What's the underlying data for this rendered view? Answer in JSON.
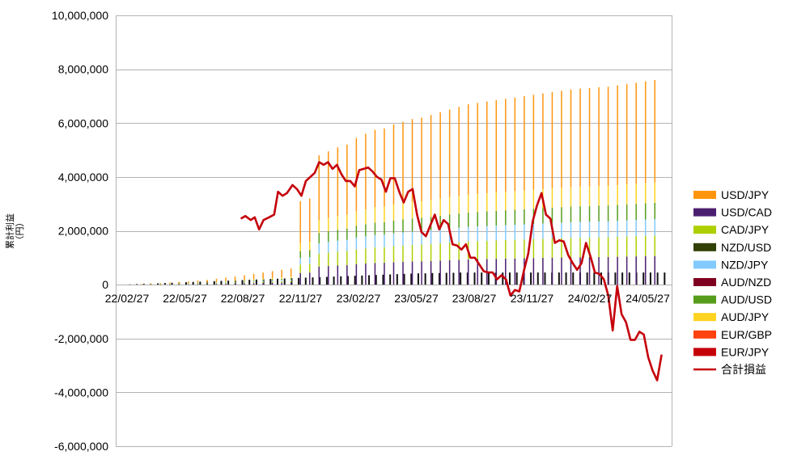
{
  "chart_data": {
    "type": "bar",
    "subtype": "stacked-bar-with-line",
    "title": "",
    "ylabel": "累計利益\n（円）",
    "ylim": [
      -6000000,
      10000000
    ],
    "yticks": [
      -6000000,
      -4000000,
      -2000000,
      0,
      2000000,
      4000000,
      6000000,
      8000000,
      10000000
    ],
    "ytick_labels": [
      "-6,000,000",
      "-4,000,000",
      "-2,000,000",
      "0",
      "2,000,000",
      "4,000,000",
      "6,000,000",
      "8,000,000",
      "10,000,000"
    ],
    "xtick_labels": [
      "22/02/27",
      "22/05/27",
      "22/08/27",
      "22/11/27",
      "23/02/27",
      "23/05/27",
      "23/08/27",
      "23/11/27",
      "24/02/27",
      "24/05/27"
    ],
    "grid": true,
    "legend_position": "right",
    "series": [
      {
        "name": "USD/JPY",
        "color": "#ff950e",
        "kind": "bar"
      },
      {
        "name": "USD/CAD",
        "color": "#4b1f6f",
        "kind": "bar"
      },
      {
        "name": "CAD/JPY",
        "color": "#aecf00",
        "kind": "bar"
      },
      {
        "name": "NZD/USD",
        "color": "#314004",
        "kind": "bar"
      },
      {
        "name": "NZD/JPY",
        "color": "#83caff",
        "kind": "bar"
      },
      {
        "name": "AUD/NZD",
        "color": "#7e0021",
        "kind": "bar"
      },
      {
        "name": "AUD/USD",
        "color": "#579d1c",
        "kind": "bar"
      },
      {
        "name": "AUD/JPY",
        "color": "#ffd320",
        "kind": "bar"
      },
      {
        "name": "EUR/GBP",
        "color": "#ff420e",
        "kind": "bar"
      },
      {
        "name": "EUR/JPY",
        "color": "#c5000b",
        "kind": "bar"
      },
      {
        "name": "合計損益",
        "color": "#c5000b",
        "kind": "line"
      }
    ],
    "bar_totals": [
      0,
      20000,
      40000,
      60000,
      80000,
      100000,
      120000,
      150000,
      180000,
      220000,
      260000,
      300000,
      350000,
      400000,
      450000,
      500000,
      550000,
      600000,
      3100000,
      3200000,
      4800000,
      4950000,
      5100000,
      5200000,
      5450000,
      5600000,
      5750000,
      5800000,
      5950000,
      6050000,
      6150000,
      6200000,
      6300000,
      6400000,
      6500000,
      6600000,
      6700000,
      6750000,
      6800000,
      6850000,
      6900000,
      6950000,
      7000000,
      7050000,
      7100000,
      7150000,
      7200000,
      7250000,
      7280000,
      7300000,
      7330000,
      7350000,
      7400000,
      7450000,
      7500000,
      7550000,
      7600000
    ],
    "black_bar_heights": [
      0,
      10000,
      20000,
      30000,
      40000,
      50000,
      60000,
      70000,
      80000,
      90000,
      100000,
      110000,
      120000,
      130000,
      140000,
      150000,
      160000,
      170000,
      180000,
      190000,
      200000,
      210000,
      220000,
      230000,
      240000,
      250000,
      260000,
      270000,
      280000,
      290000,
      300000,
      310000,
      320000,
      330000,
      340000,
      350000,
      360000,
      370000,
      380000,
      390000,
      400000,
      410000,
      420000,
      420000,
      430000,
      430000,
      440000,
      440000,
      450000,
      450000,
      450000,
      450000,
      450000,
      450000,
      450000,
      450000,
      450000,
      450000,
      450000,
      450000,
      450000,
      450000,
      450000,
      450000,
      450000,
      450000,
      450000,
      450000,
      450000,
      450000,
      450000,
      450000,
      450000,
      450000,
      450000,
      450000,
      450000,
      450000
    ],
    "total_line": [
      [
        0.225,
        2450000
      ],
      [
        0.233,
        2550000
      ],
      [
        0.243,
        2400000
      ],
      [
        0.25,
        2500000
      ],
      [
        0.258,
        2050000
      ],
      [
        0.266,
        2400000
      ],
      [
        0.276,
        2500000
      ],
      [
        0.285,
        2600000
      ],
      [
        0.292,
        3450000
      ],
      [
        0.3,
        3300000
      ],
      [
        0.308,
        3400000
      ],
      [
        0.318,
        3700000
      ],
      [
        0.326,
        3550000
      ],
      [
        0.334,
        3300000
      ],
      [
        0.342,
        3850000
      ],
      [
        0.35,
        4000000
      ],
      [
        0.358,
        4150000
      ],
      [
        0.366,
        4550000
      ],
      [
        0.374,
        4450000
      ],
      [
        0.382,
        4550000
      ],
      [
        0.39,
        4300000
      ],
      [
        0.398,
        4450000
      ],
      [
        0.406,
        4100000
      ],
      [
        0.414,
        3850000
      ],
      [
        0.422,
        3850000
      ],
      [
        0.43,
        3650000
      ],
      [
        0.438,
        4250000
      ],
      [
        0.446,
        4300000
      ],
      [
        0.454,
        4350000
      ],
      [
        0.462,
        4200000
      ],
      [
        0.47,
        4000000
      ],
      [
        0.478,
        3900000
      ],
      [
        0.486,
        3450000
      ],
      [
        0.494,
        3950000
      ],
      [
        0.502,
        3950000
      ],
      [
        0.51,
        3450000
      ],
      [
        0.518,
        3050000
      ],
      [
        0.526,
        3450000
      ],
      [
        0.534,
        3550000
      ],
      [
        0.542,
        2600000
      ],
      [
        0.55,
        1950000
      ],
      [
        0.558,
        1800000
      ],
      [
        0.566,
        2200000
      ],
      [
        0.574,
        2600000
      ],
      [
        0.582,
        2050000
      ],
      [
        0.59,
        2400000
      ],
      [
        0.598,
        2250000
      ],
      [
        0.606,
        1500000
      ],
      [
        0.614,
        1450000
      ],
      [
        0.622,
        1300000
      ],
      [
        0.63,
        1500000
      ],
      [
        0.638,
        1000000
      ],
      [
        0.646,
        1000000
      ],
      [
        0.654,
        750000
      ],
      [
        0.662,
        500000
      ],
      [
        0.67,
        450000
      ],
      [
        0.678,
        450000
      ],
      [
        0.686,
        200000
      ],
      [
        0.694,
        350000
      ],
      [
        0.702,
        200000
      ],
      [
        0.71,
        -400000
      ],
      [
        0.718,
        -200000
      ],
      [
        0.726,
        -250000
      ],
      [
        0.734,
        500000
      ],
      [
        0.742,
        1150000
      ],
      [
        0.75,
        2350000
      ],
      [
        0.758,
        2950000
      ],
      [
        0.766,
        3400000
      ],
      [
        0.774,
        2600000
      ],
      [
        0.782,
        2450000
      ],
      [
        0.79,
        1550000
      ],
      [
        0.798,
        1650000
      ],
      [
        0.806,
        1600000
      ],
      [
        0.814,
        1100000
      ],
      [
        0.822,
        800000
      ],
      [
        0.83,
        550000
      ],
      [
        0.838,
        800000
      ],
      [
        0.846,
        1550000
      ],
      [
        0.854,
        1050000
      ],
      [
        0.862,
        450000
      ],
      [
        0.87,
        400000
      ],
      [
        0.878,
        200000
      ],
      [
        0.886,
        -400000
      ],
      [
        0.894,
        -1700000
      ],
      [
        0.902,
        -50000
      ],
      [
        0.91,
        -1100000
      ],
      [
        0.918,
        -1400000
      ],
      [
        0.926,
        -2050000
      ],
      [
        0.934,
        -2050000
      ],
      [
        0.942,
        -1750000
      ],
      [
        0.95,
        -1850000
      ],
      [
        0.958,
        -2700000
      ],
      [
        0.966,
        -3200000
      ],
      [
        0.974,
        -3550000
      ],
      [
        0.982,
        -2600000
      ]
    ]
  }
}
